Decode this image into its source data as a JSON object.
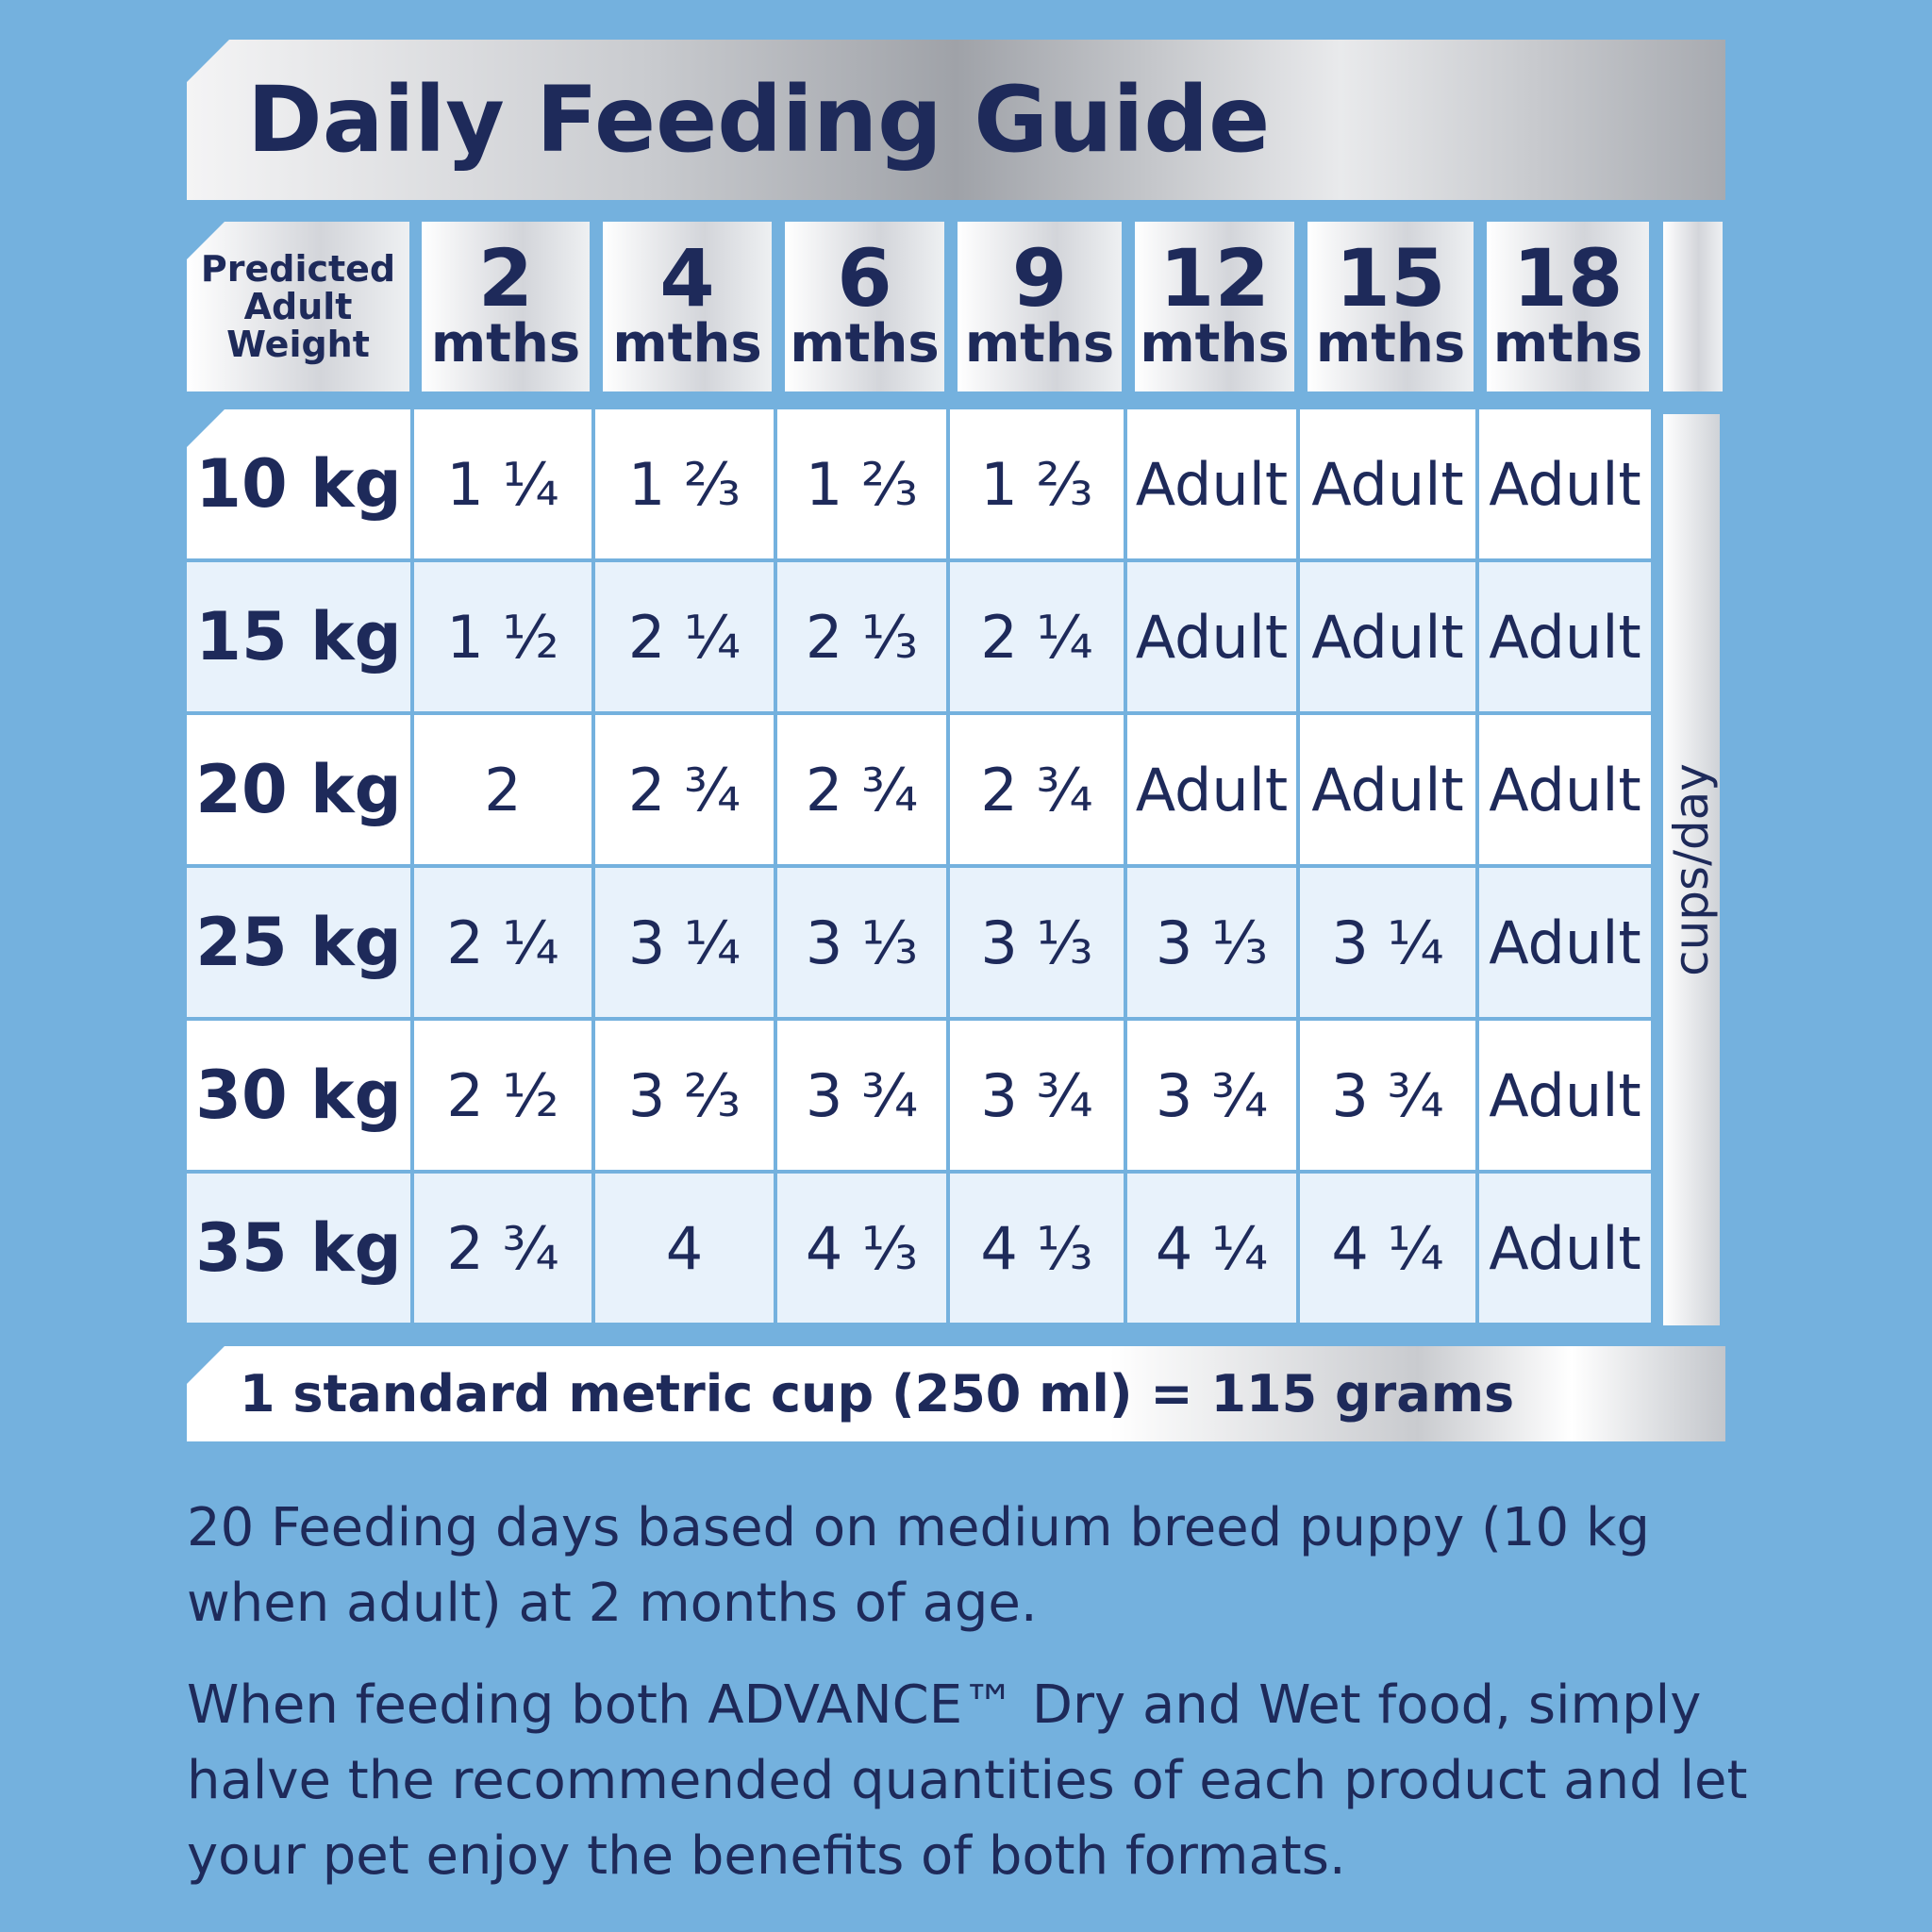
{
  "header": {
    "title": "Daily Feeding Guide"
  },
  "table": {
    "corner_header": "Predicted Adult Weight",
    "columns": [
      {
        "age": "2",
        "unit": "mths"
      },
      {
        "age": "4",
        "unit": "mths"
      },
      {
        "age": "6",
        "unit": "mths"
      },
      {
        "age": "9",
        "unit": "mths"
      },
      {
        "age": "12",
        "unit": "mths"
      },
      {
        "age": "15",
        "unit": "mths"
      },
      {
        "age": "18",
        "unit": "mths"
      }
    ],
    "rows": [
      {
        "weight": "10 kg",
        "cells": [
          "1 ¼",
          "1 ⅔",
          "1 ⅔",
          "1 ⅔",
          "Adult",
          "Adult",
          "Adult"
        ]
      },
      {
        "weight": "15 kg",
        "cells": [
          "1 ½",
          "2 ¼",
          "2 ⅓",
          "2 ¼",
          "Adult",
          "Adult",
          "Adult"
        ]
      },
      {
        "weight": "20 kg",
        "cells": [
          "2",
          "2 ¾",
          "2 ¾",
          "2 ¾",
          "Adult",
          "Adult",
          "Adult"
        ]
      },
      {
        "weight": "25 kg",
        "cells": [
          "2 ¼",
          "3 ¼",
          "3 ⅓",
          "3 ⅓",
          "3 ⅓",
          "3 ¼",
          "Adult"
        ]
      },
      {
        "weight": "30 kg",
        "cells": [
          "2 ½",
          "3 ⅔",
          "3 ¾",
          "3 ¾",
          "3 ¾",
          "3 ¾",
          "Adult"
        ]
      },
      {
        "weight": "35 kg",
        "cells": [
          "2 ¾",
          "4",
          "4 ⅓",
          "4 ⅓",
          "4 ¼",
          "4 ¼",
          "Adult"
        ]
      }
    ],
    "side_label": "cups/day",
    "footnote": "1 standard metric cup (250 ml) = 115 grams"
  },
  "notes": [
    "20 Feeding days based on medium breed puppy (10 kg when adult) at 2 months of age.",
    "When feeding both ADVANCE™ Dry and Wet food, simply halve the recommended quantities of each product and let your pet enjoy the benefits of both formats."
  ]
}
